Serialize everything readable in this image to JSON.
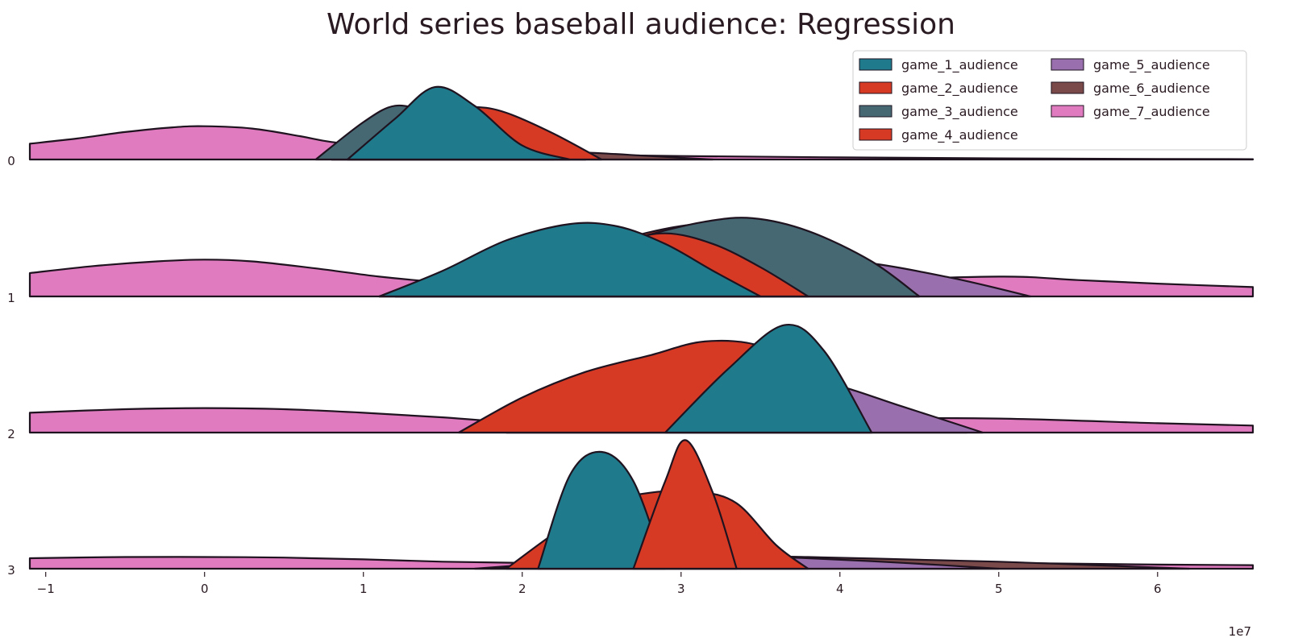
{
  "chart_data": {
    "type": "area",
    "subtype": "ridgeline",
    "title": "World series baseball audience: Regression",
    "xlabel": "",
    "ylabel": "",
    "x_ticks": [
      -1,
      0,
      1,
      2,
      3,
      4,
      5,
      6
    ],
    "x_tick_labels": [
      "−1",
      "0",
      "1",
      "2",
      "3",
      "4",
      "5",
      "6"
    ],
    "x_offset_label": "1e7",
    "xlim": [
      -11000000,
      66000000
    ],
    "rows": [
      "0",
      "1",
      "2",
      "3"
    ],
    "grid": false,
    "legend_position": "top-right",
    "legend_columns": 2,
    "series": [
      {
        "name": "game_1_audience",
        "color": "#1f7a8c"
      },
      {
        "name": "game_2_audience",
        "color": "#d63a25"
      },
      {
        "name": "game_3_audience",
        "color": "#456873"
      },
      {
        "name": "game_4_audience",
        "color": "#d63a25"
      },
      {
        "name": "game_5_audience",
        "color": "#9a6fad"
      },
      {
        "name": "game_6_audience",
        "color": "#7a4a4a"
      },
      {
        "name": "game_7_audience",
        "color": "#e07bbf"
      }
    ],
    "ridges": [
      {
        "row": "0",
        "curves": [
          {
            "series": "game_7_audience",
            "x": [
              -11000000,
              -8000000,
              -5000000,
              -2000000,
              0,
              3000000,
              6000000,
              8000000,
              12000000,
              20000000,
              30000000,
              40000000,
              50000000,
              60000000,
              66000000
            ],
            "y": [
              0.135,
              0.18,
              0.235,
              0.275,
              0.285,
              0.265,
              0.2,
              0.15,
              0.09,
              0.05,
              0.03,
              0.018,
              0.01,
              0.005,
              0.003
            ]
          },
          {
            "series": "game_6_audience",
            "x": [
              8000000,
              12000000,
              16000000,
              20000000,
              24000000,
              28000000,
              32000000
            ],
            "y": [
              0.0,
              0.03,
              0.06,
              0.075,
              0.06,
              0.03,
              0.0
            ]
          },
          {
            "series": "game_5_audience",
            "x": [
              8000000,
              11000000,
              14000000,
              16000000,
              18000000,
              21000000,
              24000000
            ],
            "y": [
              0.0,
              0.15,
              0.26,
              0.28,
              0.25,
              0.15,
              0.0
            ]
          },
          {
            "series": "game_4_audience",
            "x": [
              8000000,
              11000000,
              14000000,
              16000000,
              18000000,
              21000000,
              24000000
            ],
            "y": [
              0.0,
              0.2,
              0.4,
              0.47,
              0.4,
              0.2,
              0.0
            ]
          },
          {
            "series": "game_3_audience",
            "x": [
              7000000,
              10000000,
              12000000,
              14000000,
              16000000,
              19000000,
              22000000
            ],
            "y": [
              0.0,
              0.32,
              0.46,
              0.4,
              0.25,
              0.1,
              0.0
            ]
          },
          {
            "series": "game_2_audience",
            "x": [
              9000000,
              12000000,
              15000000,
              17000000,
              19000000,
              22000000,
              25000000
            ],
            "y": [
              0.0,
              0.27,
              0.42,
              0.45,
              0.4,
              0.22,
              0.0
            ]
          },
          {
            "series": "game_1_audience",
            "x": [
              9000000,
              12000000,
              14500000,
              17000000,
              20000000,
              23000000
            ],
            "y": [
              0.0,
              0.35,
              0.62,
              0.46,
              0.12,
              0.0
            ]
          }
        ]
      },
      {
        "row": "1",
        "curves": [
          {
            "series": "game_7_audience",
            "x": [
              -11000000,
              -7000000,
              -3000000,
              0,
              3000000,
              7000000,
              11000000,
              15000000,
              20000000,
              30000000,
              40000000,
              50000000,
              55000000,
              60000000,
              66000000
            ],
            "y": [
              0.2,
              0.26,
              0.3,
              0.315,
              0.3,
              0.24,
              0.17,
              0.12,
              0.08,
              0.07,
              0.13,
              0.17,
              0.14,
              0.11,
              0.08
            ]
          },
          {
            "series": "game_6_audience",
            "x": [
              11000000,
              16000000,
              21000000,
              26000000,
              31000000,
              36000000,
              41000000,
              45000000
            ],
            "y": [
              0.0,
              0.07,
              0.14,
              0.18,
              0.18,
              0.13,
              0.06,
              0.0
            ]
          },
          {
            "series": "game_5_audience",
            "x": [
              11000000,
              17000000,
              23000000,
              29000000,
              35000000,
              41000000,
              47000000,
              52000000
            ],
            "y": [
              0.0,
              0.09,
              0.18,
              0.27,
              0.33,
              0.3,
              0.16,
              0.0
            ]
          },
          {
            "series": "game_4_audience",
            "x": [
              12000000,
              18000000,
              24000000,
              28000000,
              31000000,
              34000000,
              38000000,
              42000000,
              45000000
            ],
            "y": [
              0.0,
              0.17,
              0.4,
              0.55,
              0.62,
              0.63,
              0.52,
              0.28,
              0.0
            ]
          },
          {
            "series": "game_3_audience",
            "x": [
              12000000,
              18000000,
              24000000,
              28000000,
              31500000,
              34500000,
              38000000,
              42000000,
              45000000
            ],
            "y": [
              0.0,
              0.16,
              0.38,
              0.53,
              0.64,
              0.67,
              0.56,
              0.3,
              0.0
            ]
          },
          {
            "series": "game_2_audience",
            "x": [
              12000000,
              17000000,
              22000000,
              26000000,
              29000000,
              32000000,
              35000000,
              38000000
            ],
            "y": [
              0.0,
              0.13,
              0.3,
              0.46,
              0.54,
              0.45,
              0.25,
              0.0
            ]
          },
          {
            "series": "game_1_audience",
            "x": [
              11000000,
              15000000,
              19000000,
              23000000,
              26000000,
              29000000,
              32000000,
              35000000
            ],
            "y": [
              0.0,
              0.22,
              0.48,
              0.62,
              0.6,
              0.45,
              0.22,
              0.0
            ]
          }
        ]
      },
      {
        "row": "2",
        "curves": [
          {
            "series": "game_7_audience",
            "x": [
              -11000000,
              -5000000,
              0,
              5000000,
              10000000,
              15000000,
              20000000,
              30000000,
              40000000,
              50000000,
              60000000,
              66000000
            ],
            "y": [
              0.17,
              0.2,
              0.21,
              0.2,
              0.17,
              0.13,
              0.09,
              0.09,
              0.12,
              0.12,
              0.08,
              0.06
            ]
          },
          {
            "series": "game_6_audience",
            "x": [
              19000000,
              24000000,
              30000000,
              36000000,
              42000000,
              48000000
            ],
            "y": [
              0.0,
              0.05,
              0.1,
              0.1,
              0.05,
              0.0
            ]
          },
          {
            "series": "game_5_audience",
            "x": [
              19000000,
              24000000,
              29000000,
              34000000,
              39000000,
              44000000,
              49000000
            ],
            "y": [
              0.0,
              0.2,
              0.42,
              0.5,
              0.43,
              0.22,
              0.0
            ]
          },
          {
            "series": "game_4_audience",
            "x": [
              16000000,
              20000000,
              24000000,
              28000000,
              31500000,
              35000000,
              37500000,
              40000000,
              42000000
            ],
            "y": [
              0.0,
              0.3,
              0.52,
              0.66,
              0.78,
              0.74,
              0.5,
              0.15,
              0.0
            ]
          },
          {
            "series": "game_1_audience",
            "x": [
              29000000,
              33000000,
              36500000,
              39000000,
              42000000
            ],
            "y": [
              0.0,
              0.55,
              0.92,
              0.7,
              0.0
            ]
          }
        ]
      },
      {
        "row": "3",
        "curves": [
          {
            "series": "game_7_audience",
            "x": [
              -11000000,
              -5000000,
              0,
              5000000,
              10000000,
              15000000,
              20000000,
              25000000,
              30000000,
              40000000,
              50000000,
              60000000,
              66000000
            ],
            "y": [
              0.09,
              0.1,
              0.1,
              0.095,
              0.08,
              0.06,
              0.05,
              0.05,
              0.06,
              0.06,
              0.05,
              0.035,
              0.03
            ]
          },
          {
            "series": "game_6_audience",
            "x": [
              17000000,
              22000000,
              27000000,
              32000000,
              38000000,
              44000000,
              50000000,
              56000000,
              62000000
            ],
            "y": [
              0.0,
              0.05,
              0.09,
              0.11,
              0.1,
              0.08,
              0.06,
              0.03,
              0.0
            ]
          },
          {
            "series": "game_5_audience",
            "x": [
              18000000,
              23000000,
              28000000,
              33000000,
              38000000,
              44000000,
              50000000
            ],
            "y": [
              0.0,
              0.06,
              0.1,
              0.11,
              0.09,
              0.05,
              0.0
            ]
          },
          {
            "series": "game_4_audience",
            "x": [
              19000000,
              22000000,
              25000000,
              28000000,
              31000000,
              33500000,
              36000000,
              38000000
            ],
            "y": [
              0.0,
              0.3,
              0.55,
              0.65,
              0.66,
              0.56,
              0.2,
              0.0
            ]
          },
          {
            "series": "game_1_audience",
            "x": [
              21000000,
              23000000,
              25000000,
              27000000,
              29000000
            ],
            "y": [
              0.0,
              0.8,
              1.0,
              0.75,
              0.0
            ]
          },
          {
            "series": "game_2_audience",
            "x": [
              27000000,
              29000000,
              30300000,
              32000000,
              33500000
            ],
            "y": [
              0.0,
              0.75,
              1.1,
              0.65,
              0.0
            ]
          }
        ]
      }
    ]
  }
}
